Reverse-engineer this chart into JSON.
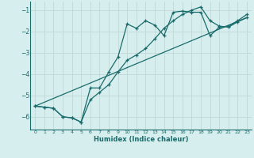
{
  "xlabel": "Humidex (Indice chaleur)",
  "background_color": "#d7eeee",
  "grid_color": "#c0d8d8",
  "line_color": "#1a6b6b",
  "xlim": [
    -0.5,
    23.5
  ],
  "ylim": [
    -6.6,
    -0.6
  ],
  "yticks": [
    -6,
    -5,
    -4,
    -3,
    -2,
    -1
  ],
  "xticks": [
    0,
    1,
    2,
    3,
    4,
    5,
    6,
    7,
    8,
    9,
    10,
    11,
    12,
    13,
    14,
    15,
    16,
    17,
    18,
    19,
    20,
    21,
    22,
    23
  ],
  "line1_x": [
    0,
    1,
    2,
    3,
    4,
    5,
    6,
    7,
    8,
    9,
    10,
    11,
    12,
    13,
    14,
    15,
    16,
    17,
    18,
    19,
    20,
    21,
    22,
    23
  ],
  "line1_y": [
    -5.5,
    -5.55,
    -5.6,
    -6.0,
    -6.05,
    -6.25,
    -4.65,
    -4.65,
    -3.9,
    -3.2,
    -1.65,
    -1.85,
    -1.5,
    -1.7,
    -2.2,
    -1.1,
    -1.05,
    -1.1,
    -1.1,
    -2.2,
    -1.8,
    -1.75,
    -1.5,
    -1.2
  ],
  "line2_x": [
    0,
    1,
    2,
    3,
    4,
    5,
    6,
    7,
    8,
    9,
    10,
    11,
    12,
    13,
    14,
    15,
    16,
    17,
    18,
    19,
    20,
    21,
    22,
    23
  ],
  "line2_y": [
    -5.5,
    -5.55,
    -5.6,
    -6.0,
    -6.05,
    -6.25,
    -5.2,
    -4.85,
    -4.5,
    -3.9,
    -3.35,
    -3.1,
    -2.8,
    -2.35,
    -1.85,
    -1.5,
    -1.2,
    -1.0,
    -0.85,
    -1.5,
    -1.75,
    -1.8,
    -1.55,
    -1.35
  ],
  "line3_x": [
    0,
    23
  ],
  "line3_y": [
    -5.5,
    -1.35
  ]
}
